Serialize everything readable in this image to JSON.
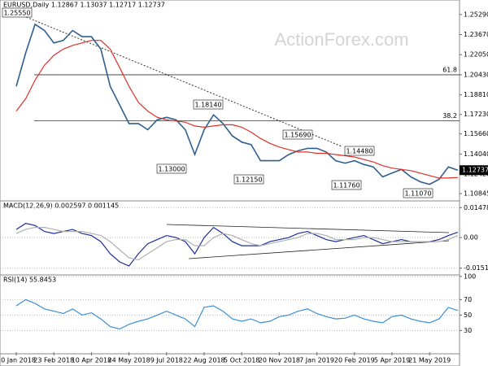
{
  "chart_data": [
    {
      "type": "line",
      "title": "EURUSD,Daily  1.12867 1.13037 1.12717 1.12737",
      "watermark": "ActionForex.com",
      "ylim": [
        1.1026,
        1.2646
      ],
      "yticks": [
        {
          "value": 1.2529,
          "label": "1.25290"
        },
        {
          "value": 1.2367,
          "label": "1.23670"
        },
        {
          "value": 1.2205,
          "label": "1.22050"
        },
        {
          "value": 1.2043,
          "label": "1.20430"
        },
        {
          "value": 1.1881,
          "label": "1.18810"
        },
        {
          "value": 1.1723,
          "label": "1.17230"
        },
        {
          "value": 1.1566,
          "label": "1.15660"
        },
        {
          "value": 1.1404,
          "label": "1.14040"
        },
        {
          "value": 1.1242,
          "label": "1.12420"
        },
        {
          "value": 1.10845,
          "label": "1.10845"
        }
      ],
      "series": [
        {
          "color": "#2f5f8f",
          "values": [
            1.195,
            1.222,
            1.245,
            1.24,
            1.23,
            1.232,
            1.24,
            1.235,
            1.235,
            1.225,
            1.195,
            1.18,
            1.165,
            1.165,
            1.16,
            1.168,
            1.17,
            1.168,
            1.16,
            1.14,
            1.16,
            1.172,
            1.165,
            1.155,
            1.15,
            1.148,
            1.135,
            1.135,
            1.135,
            1.14,
            1.143,
            1.145,
            1.145,
            1.142,
            1.135,
            1.133,
            1.135,
            1.132,
            1.13,
            1.122,
            1.125,
            1.128,
            1.122,
            1.118,
            1.116,
            1.12,
            1.13,
            1.12737
          ]
        },
        {
          "color": "#e0302a",
          "values": [
            1.175,
            1.185,
            1.2,
            1.212,
            1.22,
            1.225,
            1.228,
            1.23,
            1.232,
            1.232,
            1.225,
            1.21,
            1.195,
            1.182,
            1.175,
            1.17,
            1.168,
            1.167,
            1.166,
            1.163,
            1.162,
            1.163,
            1.164,
            1.164,
            1.162,
            1.158,
            1.153,
            1.149,
            1.146,
            1.144,
            1.142,
            1.142,
            1.141,
            1.141,
            1.14,
            1.139,
            1.138,
            1.136,
            1.134,
            1.131,
            1.129,
            1.128,
            1.127,
            1.125,
            1.123,
            1.121,
            1.121,
            1.1215
          ]
        }
      ],
      "levels": [
        {
          "label": "61.8",
          "value": 1.2043
        },
        {
          "label": "38.2",
          "value": 1.1673
        }
      ],
      "annotations": [
        "1.25550",
        "1.18140",
        "1.13000",
        "1.12150",
        "1.15690",
        "1.14480",
        "1.11760",
        "1.11070"
      ],
      "last_label": "1.12737"
    },
    {
      "type": "line",
      "title": "MACD(12,26,9) 0.002597 0.001145",
      "ylim": [
        -0.01843,
        0.01811
      ],
      "yticks": [
        0.014786,
        {
          "value": 0,
          "label": "0.00"
        },
        -0.015107
      ],
      "series": [
        {
          "color": "#1c2f9c",
          "values": [
            0.004,
            0.007,
            0.006,
            0.003,
            0.002,
            0.003,
            0.004,
            0.002,
            0.001,
            -0.002,
            -0.008,
            -0.012,
            -0.014,
            -0.008,
            -0.003,
            -0.001,
            0.001,
            0,
            -0.002,
            -0.008,
            0,
            0.005,
            0.002,
            -0.002,
            -0.004,
            -0.004,
            -0.004,
            -0.002,
            -0.001,
            0,
            0.002,
            0.003,
            0.001,
            -0.001,
            -0.002,
            -0.001,
            0,
            0.001,
            -0.001,
            -0.003,
            -0.002,
            -0.001,
            -0.002,
            -0.002,
            -0.002,
            -0.001,
            0.001,
            0.0026
          ]
        },
        {
          "color": "#b0b0b0",
          "values": [
            0.002,
            0.004,
            0.005,
            0.005,
            0.004,
            0.003,
            0.003,
            0.003,
            0.002,
            0.001,
            -0.002,
            -0.006,
            -0.01,
            -0.011,
            -0.008,
            -0.005,
            -0.002,
            -0.001,
            -0.001,
            -0.004,
            -0.004,
            0,
            0.002,
            0.001,
            -0.001,
            -0.003,
            -0.004,
            -0.003,
            -0.002,
            -0.001,
            0,
            0.002,
            0.002,
            0.001,
            -0.001,
            -0.001,
            -0.001,
            0,
            0,
            -0.001,
            -0.002,
            -0.002,
            -0.002,
            -0.002,
            -0.002,
            -0.002,
            -0.001,
            0.0011
          ]
        }
      ]
    },
    {
      "type": "line",
      "title": "RSI(14) 55.8453",
      "ylim": [
        2,
        102
      ],
      "yticks": [
        100,
        70,
        50,
        30
      ],
      "categories": [
        "10 Jan 2018",
        null,
        null,
        null,
        "23 Feb 2018",
        null,
        null,
        null,
        "10 Apr 2018",
        null,
        null,
        null,
        "24 May 2018",
        null,
        null,
        null,
        "9 Jul 2018",
        null,
        null,
        null,
        "22 Aug 2018",
        null,
        null,
        null,
        "5 Oct 2018",
        null,
        null,
        null,
        "20 Nov 2018",
        null,
        null,
        null,
        "7 Jan 2019",
        null,
        null,
        null,
        "20 Feb 2019",
        null,
        null,
        null,
        "5 Apr 2019",
        null,
        null,
        null,
        "21 May 2019",
        null,
        null,
        null
      ],
      "series": [
        {
          "color": "#3c8fd6",
          "values": [
            62,
            70,
            65,
            58,
            55,
            52,
            58,
            50,
            53,
            45,
            35,
            32,
            38,
            42,
            45,
            50,
            55,
            50,
            45,
            35,
            60,
            62,
            55,
            45,
            42,
            45,
            40,
            42,
            48,
            50,
            55,
            58,
            52,
            48,
            45,
            46,
            50,
            45,
            42,
            40,
            48,
            50,
            45,
            42,
            40,
            45,
            60,
            55.8453
          ]
        }
      ]
    }
  ]
}
